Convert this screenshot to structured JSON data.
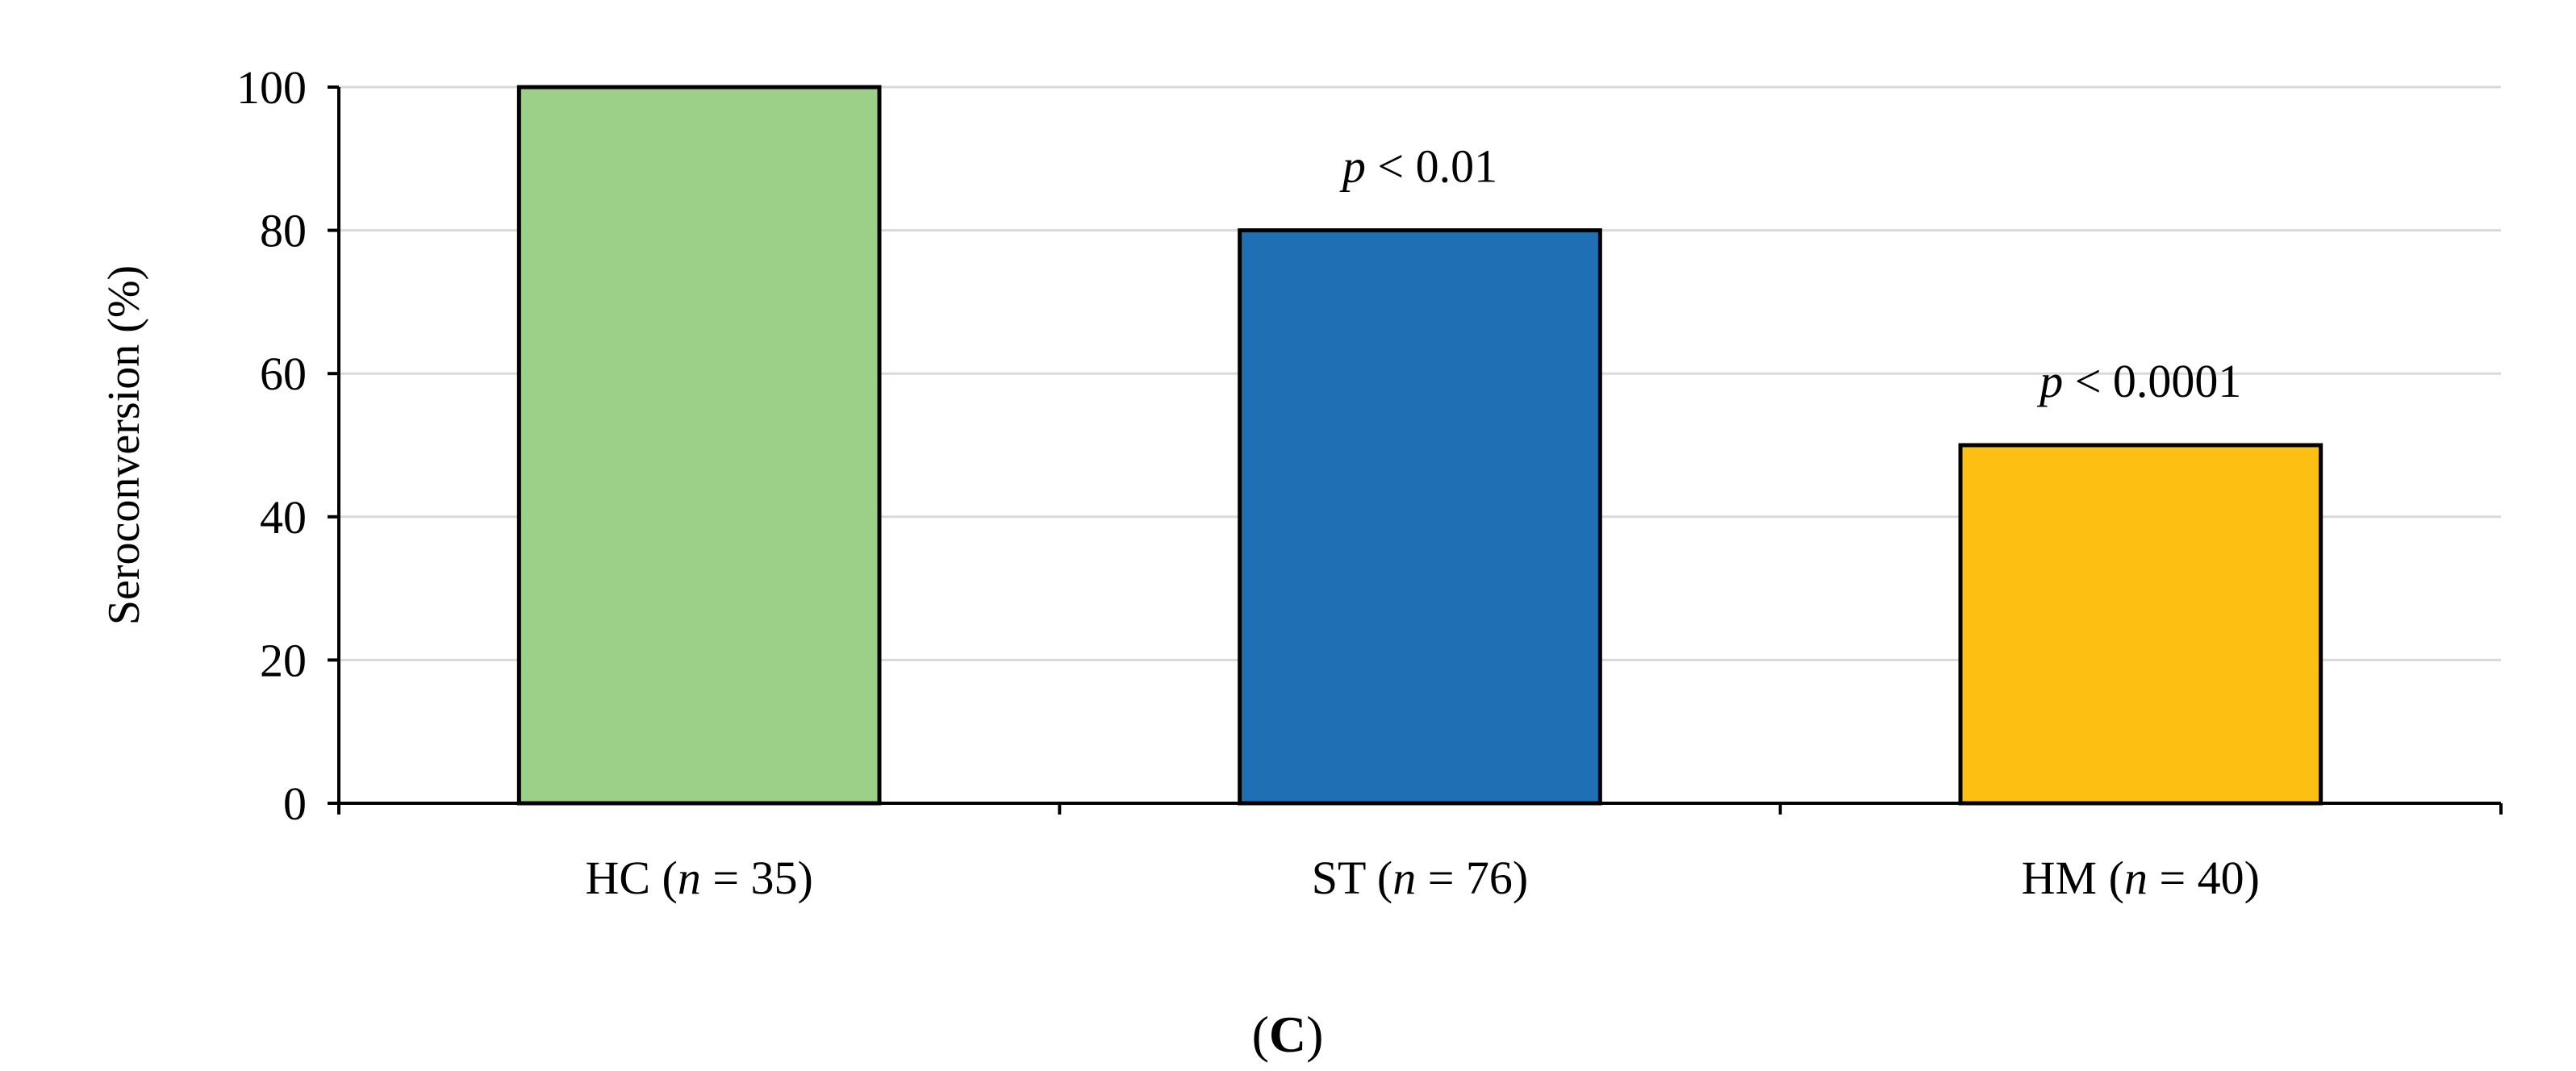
{
  "chart_data": {
    "type": "bar",
    "categories": [
      {
        "name": "HC",
        "n_label": "n",
        "n_value": "= 35)",
        "prefix": "HC (",
        "full": "HC (n = 35)"
      },
      {
        "name": "ST",
        "n_label": "n",
        "n_value": "= 76)",
        "prefix": "ST (",
        "full": "ST (n = 76)"
      },
      {
        "name": "HM",
        "n_label": "n",
        "n_value": "= 40)",
        "prefix": "HM (",
        "full": "HM (n = 40)"
      }
    ],
    "values": [
      100,
      80,
      50
    ],
    "colors": [
      "#9ccf88",
      "#1f6fb5",
      "#fdc012"
    ],
    "annotations": [
      null,
      {
        "p": "p",
        "text": " < 0.01"
      },
      {
        "p": "p",
        "text": " < 0.0001"
      }
    ],
    "ylabel": "Seroconversion (%)",
    "ylim": [
      0,
      100
    ],
    "yticks": [
      0,
      20,
      40,
      60,
      80,
      100
    ],
    "grid": true,
    "panel_label": {
      "open": "(",
      "letter": "C",
      "close": ")"
    }
  }
}
